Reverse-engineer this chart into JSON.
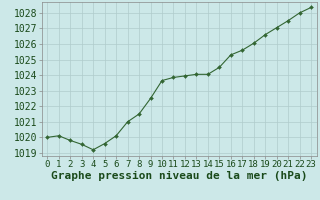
{
  "hours": [
    0,
    1,
    2,
    3,
    4,
    5,
    6,
    7,
    8,
    9,
    10,
    11,
    12,
    13,
    14,
    15,
    16,
    17,
    18,
    19,
    20,
    21,
    22,
    23
  ],
  "pressure": [
    1020.0,
    1020.1,
    1019.8,
    1019.55,
    1019.2,
    1019.6,
    1020.1,
    1021.0,
    1021.5,
    1022.5,
    1023.65,
    1023.85,
    1023.95,
    1024.05,
    1024.05,
    1024.5,
    1025.3,
    1025.6,
    1026.05,
    1026.6,
    1027.05,
    1027.5,
    1028.0,
    1028.35
  ],
  "ylim": [
    1018.8,
    1028.7
  ],
  "yticks": [
    1019,
    1020,
    1021,
    1022,
    1023,
    1024,
    1025,
    1026,
    1027,
    1028
  ],
  "line_color": "#336633",
  "marker_color": "#336633",
  "bg_color": "#cce8e8",
  "grid_color": "#b0cccc",
  "xlabel": "Graphe pression niveau de la mer (hPa)",
  "xlabel_color": "#1a4a1a",
  "tick_color": "#1a4a1a",
  "axis_color": "#888888",
  "tick_fontsize": 7,
  "xlabel_fontsize": 8
}
